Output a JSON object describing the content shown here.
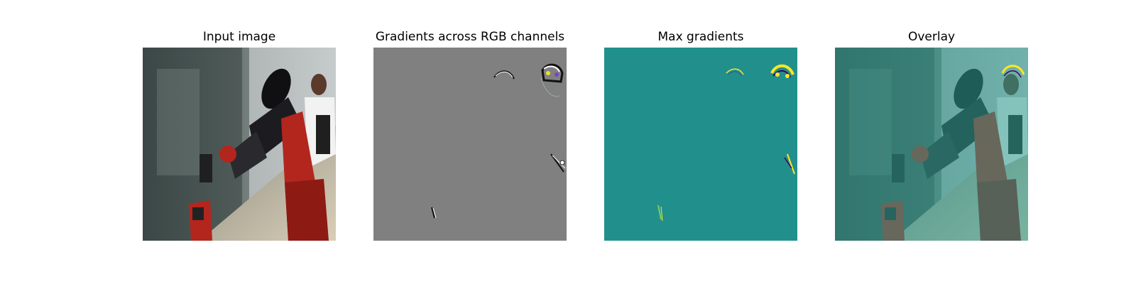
{
  "panels": [
    {
      "title": "Input image"
    },
    {
      "title": "Gradients across RGB channels"
    },
    {
      "title": "Max gradients"
    },
    {
      "title": "Overlay"
    }
  ],
  "colors": {
    "background": "#ffffff",
    "gradient_gray": "#808080",
    "max_gradient_teal": "#21908d",
    "highlight_yellow": "#fde725",
    "robot_red": "#b3261e",
    "robot_black": "#1c1c20",
    "overlay_tint": "#2a9d8f"
  }
}
